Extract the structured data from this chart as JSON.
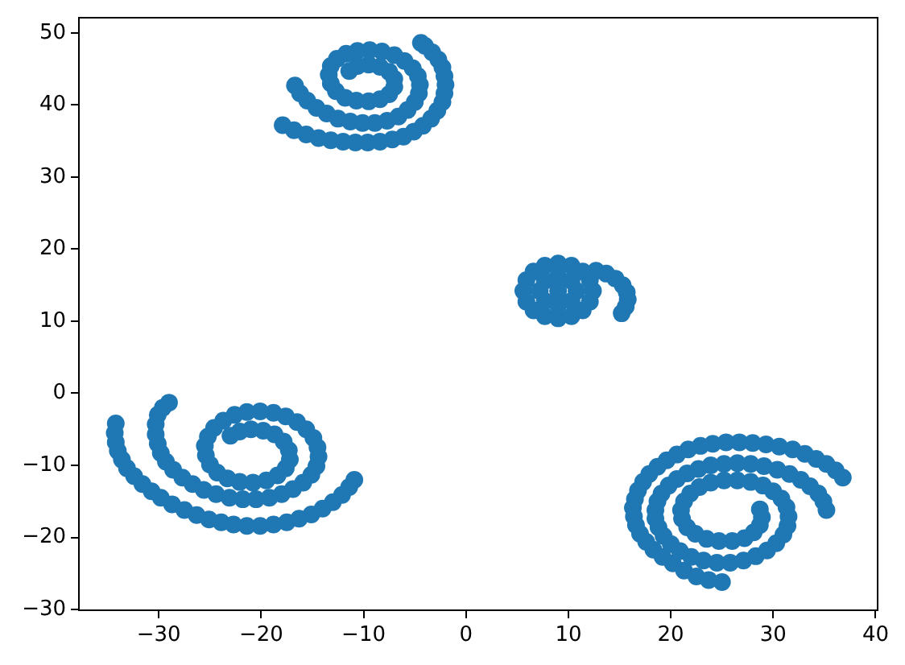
{
  "chart_data": {
    "type": "scatter",
    "color": "#1f77b4",
    "marker": "circle",
    "grid": false,
    "xlim": [
      -37.8,
      40.2
    ],
    "ylim": [
      -30.1,
      52.1
    ],
    "xticks": [
      {
        "value": -30,
        "label": "−30"
      },
      {
        "value": -20,
        "label": "−20"
      },
      {
        "value": -10,
        "label": "−10"
      },
      0,
      10,
      20,
      30,
      40
    ],
    "yticks": [
      {
        "value": -30,
        "label": "−30"
      },
      {
        "value": -20,
        "label": "−20"
      },
      {
        "value": -10,
        "label": "−10"
      },
      0,
      10,
      20,
      30,
      40,
      50
    ],
    "x": [
      -17.9,
      -16.8,
      -15.6,
      -14.4,
      -13.2,
      -12.0,
      -10.8,
      -9.6,
      -8.4,
      -7.2,
      -6.1,
      -5.1,
      -4.2,
      -3.4,
      -2.8,
      -2.3,
      -2.1,
      -2.0,
      -2.1,
      -2.3,
      -2.7,
      -3.3,
      -4.0,
      -4.4,
      -16.7,
      -16.2,
      -15.5,
      -14.6,
      -13.6,
      -12.5,
      -11.3,
      -10.1,
      -8.9,
      -7.7,
      -6.6,
      -5.7,
      -5.0,
      -4.6,
      -4.5,
      -4.7,
      -5.2,
      -6.0,
      -7.0,
      -8.2,
      -9.4,
      -10.6,
      -11.7,
      -12.6,
      -13.2,
      -13.4,
      -13.2,
      -12.7,
      -11.8,
      -10.7,
      -9.5,
      -8.4,
      -7.5,
      -7.0,
      -7.0,
      -7.5,
      -8.4,
      -9.5,
      -10.6,
      -11.4,
      12.4,
      12.1,
      11.4,
      10.3,
      9.0,
      7.7,
      6.6,
      5.9,
      5.6,
      5.9,
      6.6,
      7.7,
      9.0,
      10.3,
      11.4,
      12.1,
      10.8,
      10.3,
      9.0,
      7.7,
      7.2,
      7.7,
      9.0,
      10.3,
      9.0,
      12.7,
      13.7,
      14.6,
      15.3,
      15.7,
      15.8,
      15.6,
      15.2,
      -34.2,
      -34.3,
      -34.2,
      -34.0,
      -33.6,
      -33.1,
      -32.4,
      -31.6,
      -30.7,
      -29.8,
      -28.7,
      -27.5,
      -26.3,
      -25.1,
      -23.9,
      -22.7,
      -21.4,
      -20.1,
      -18.8,
      -17.5,
      -16.3,
      -15.1,
      -14.0,
      -13.0,
      -12.1,
      -11.4,
      -10.9,
      -29.0,
      -29.6,
      -30.1,
      -30.3,
      -30.3,
      -30.1,
      -29.8,
      -29.3,
      -28.6,
      -27.7,
      -26.7,
      -25.6,
      -24.4,
      -23.1,
      -21.8,
      -20.5,
      -19.2,
      -18.0,
      -16.9,
      -15.9,
      -15.1,
      -14.6,
      -14.4,
      -14.5,
      -14.9,
      -15.6,
      -16.5,
      -17.6,
      -18.8,
      -20.1,
      -21.4,
      -22.6,
      -23.7,
      -24.6,
      -25.2,
      -25.5,
      -25.4,
      -25.0,
      -24.3,
      -23.3,
      -22.1,
      -20.8,
      -19.5,
      -18.4,
      -17.6,
      -17.2,
      -17.3,
      -17.8,
      -18.7,
      -19.8,
      -21.0,
      -22.1,
      -23.0,
      36.8,
      36.1,
      35.2,
      34.2,
      33.1,
      31.9,
      30.6,
      29.3,
      28.0,
      26.7,
      25.4,
      24.1,
      22.9,
      21.7,
      20.6,
      19.6,
      18.7,
      17.9,
      17.3,
      16.8,
      16.5,
      16.3,
      16.4,
      16.6,
      17.0,
      17.6,
      18.3,
      19.2,
      20.2,
      21.3,
      22.5,
      23.7,
      25.0,
      35.2,
      34.9,
      34.4,
      33.6,
      32.7,
      31.6,
      30.4,
      29.1,
      27.8,
      26.5,
      25.2,
      23.9,
      22.7,
      21.6,
      20.6,
      19.8,
      19.1,
      18.7,
      18.5,
      18.5,
      18.8,
      19.3,
      20.0,
      20.9,
      22.0,
      23.2,
      24.5,
      25.8,
      27.1,
      28.3,
      29.4,
      30.3,
      31.0,
      31.4,
      31.5,
      31.3,
      30.8,
      30.0,
      29.0,
      27.8,
      26.5,
      25.2,
      23.9,
      22.8,
      21.9,
      21.3,
      21.0,
      21.1,
      21.6,
      22.4,
      23.5,
      24.7,
      26.0,
      27.2,
      28.1,
      28.7,
      28.9,
      28.7
    ],
    "values": [
      37.2,
      36.5,
      35.9,
      35.4,
      35.1,
      34.9,
      34.8,
      34.8,
      34.9,
      35.2,
      35.6,
      36.3,
      37.1,
      38.1,
      39.2,
      40.4,
      41.6,
      42.8,
      44.0,
      45.2,
      46.3,
      47.3,
      48.2,
      48.6,
      42.7,
      41.6,
      40.6,
      39.6,
      38.8,
      38.1,
      37.7,
      37.5,
      37.5,
      37.8,
      38.4,
      39.3,
      40.4,
      41.6,
      42.8,
      44.0,
      45.1,
      46.1,
      46.9,
      47.4,
      47.6,
      47.5,
      47.1,
      46.4,
      45.4,
      44.2,
      43.0,
      41.9,
      41.0,
      40.6,
      40.5,
      40.8,
      41.5,
      42.5,
      43.6,
      44.6,
      45.3,
      45.6,
      45.4,
      44.7,
      14.2,
      15.7,
      16.9,
      17.7,
      18.0,
      17.7,
      16.9,
      15.7,
      14.2,
      12.7,
      11.5,
      10.7,
      10.4,
      10.7,
      11.5,
      12.7,
      14.2,
      15.6,
      16.2,
      15.6,
      14.2,
      12.8,
      12.2,
      12.8,
      14.2,
      17.0,
      16.6,
      15.9,
      15.0,
      14.0,
      13.0,
      12.0,
      11.1,
      -4.2,
      -5.5,
      -6.8,
      -8.0,
      -9.2,
      -10.4,
      -11.5,
      -12.6,
      -13.6,
      -14.5,
      -15.4,
      -16.2,
      -16.9,
      -17.5,
      -17.9,
      -18.2,
      -18.4,
      -18.4,
      -18.2,
      -17.9,
      -17.4,
      -16.8,
      -16.0,
      -15.1,
      -14.1,
      -13.0,
      -12.0,
      -1.3,
      -2.0,
      -3.0,
      -4.3,
      -5.7,
      -7.0,
      -8.3,
      -9.5,
      -10.6,
      -11.7,
      -12.6,
      -13.4,
      -14.0,
      -14.5,
      -14.7,
      -14.7,
      -14.5,
      -14.0,
      -13.3,
      -12.4,
      -11.3,
      -10.1,
      -8.8,
      -7.5,
      -6.2,
      -5.0,
      -4.0,
      -3.2,
      -2.7,
      -2.5,
      -2.6,
      -3.0,
      -3.8,
      -4.8,
      -6.0,
      -7.3,
      -8.6,
      -9.9,
      -11.0,
      -11.8,
      -12.3,
      -12.4,
      -12.1,
      -11.4,
      -10.4,
      -9.2,
      -7.9,
      -6.7,
      -5.7,
      -5.2,
      -5.0,
      -5.3,
      -5.9,
      -11.7,
      -10.7,
      -9.8,
      -9.1,
      -8.4,
      -7.8,
      -7.4,
      -7.1,
      -6.9,
      -6.8,
      -6.8,
      -7.0,
      -7.3,
      -7.8,
      -8.5,
      -9.3,
      -10.2,
      -11.2,
      -12.3,
      -13.5,
      -14.7,
      -15.9,
      -17.1,
      -18.3,
      -19.5,
      -20.6,
      -21.7,
      -22.7,
      -23.6,
      -24.6,
      -25.4,
      -25.9,
      -26.2,
      -16.2,
      -15.0,
      -13.9,
      -12.9,
      -12.0,
      -11.2,
      -10.6,
      -10.1,
      -9.8,
      -9.7,
      -9.8,
      -10.0,
      -10.5,
      -11.1,
      -11.9,
      -12.8,
      -13.9,
      -15.0,
      -16.2,
      -17.4,
      -18.6,
      -19.8,
      -20.9,
      -21.9,
      -22.7,
      -23.2,
      -23.5,
      -23.5,
      -23.2,
      -22.6,
      -21.8,
      -20.8,
      -19.6,
      -18.4,
      -17.1,
      -15.8,
      -14.6,
      -13.6,
      -12.8,
      -12.3,
      -12.1,
      -12.1,
      -12.4,
      -13.0,
      -13.9,
      -15.0,
      -16.2,
      -17.4,
      -18.6,
      -19.5,
      -20.2,
      -20.5,
      -20.5,
      -20.1,
      -19.3,
      -18.3,
      -17.2,
      -16.1
    ]
  }
}
